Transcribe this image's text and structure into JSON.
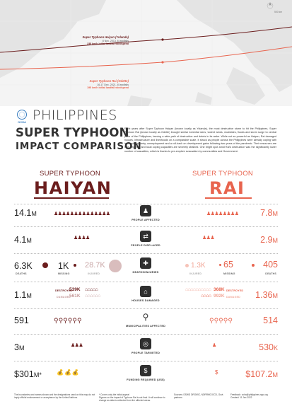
{
  "map": {
    "haiyan_label": {
      "name": "Super Typhoon Haiyan (Yolanda)",
      "dates": "8 Nov. 2013, 6 landfalls",
      "wind": "235 km/h initial landfall windspeed"
    },
    "rai_label": {
      "name": "Super Typhoon Rai (Odette)",
      "dates": "16-17 Dec. 2021, 8 landfalls",
      "wind": "195 km/h initial landfall windspeed"
    },
    "scale": "500 km",
    "colors": {
      "haiyan": "#6b1d1d",
      "rai": "#e8644e",
      "land": "#e3e3e3",
      "water": "#f4f4f4"
    }
  },
  "logo": {
    "text": "OCHA",
    "icon": "un-emblem-icon"
  },
  "title": {
    "line1": "PHILIPPINES",
    "line2": "SUPER TYPHOON",
    "line3": "IMPACT COMPARISON"
  },
  "intro": "Eight years after Super Typhoon Haiyan (known locally as Yolanda), the most destructive storm to hit the Philippines, Super Typhoon Rai (known locally as Odette) brought similar torrential rains, violent winds, mudslides, floods and storm surge to central parts of the Philippines, leaving a wide path of destruction and debris in its wake. While not as powerful as Haiyan, Rai damaged houses, infrastructure and livelihoods on a comparable scale. It struck as people across the Philippines were already coping with increasing poverty, unemployment and a roll-back on development gains following two years of the pandemic. Their resources are now depleted and local coping capacities are severely strained. One bright spot amid Rai's destruction was the significantly lower number of casualties, which is thanks to pre-emptive evacuation by communities and Government.",
  "storms": {
    "haiyan": {
      "sub": "SUPER TYPHOON",
      "name": "HAIYAN"
    },
    "rai": {
      "sub": "SUPER TYPHOON",
      "name": "RAI"
    }
  },
  "rows": {
    "affected": {
      "label": "PEOPLE AFFECTED",
      "haiyan": "14.1",
      "haiyan_unit": "M",
      "rai": "7.8",
      "rai_unit": "M",
      "icon": "people-group-icon"
    },
    "displaced": {
      "label": "PEOPLE DISPLACED",
      "haiyan": "4.1",
      "haiyan_unit": "M",
      "rai": "2.9",
      "rai_unit": "M",
      "icon": "displaced-people-icon"
    },
    "deaths": {
      "label": "DEATHS/INJURIES",
      "haiyan_deaths": "6.3K",
      "haiyan_missing": "1K",
      "haiyan_injured": "28.7K",
      "rai_injured": "1.3K",
      "rai_missing": "65",
      "rai_deaths": "405",
      "cap_deaths": "DEATHS",
      "cap_missing": "MISSING",
      "cap_injured": "INJURED",
      "icon": "injured-person-icon"
    },
    "houses": {
      "label": "HOUSES DAMAGED",
      "haiyan": "1.1",
      "haiyan_unit": "M",
      "rai": "1.36",
      "rai_unit": "M",
      "haiyan_destroyed": "539K",
      "haiyan_damaged": "561K",
      "rai_destroyed": "368K",
      "rai_damaged": "992K",
      "cap_destroyed": "DESTROYED",
      "cap_damaged": "DAMAGED",
      "icon": "house-icon"
    },
    "municipalities": {
      "label": "MUNICIPALITIES AFFECTED",
      "haiyan": "591",
      "rai": "514",
      "icon": "map-pin-icon"
    },
    "targeted": {
      "label": "PEOPLE TARGETED",
      "haiyan": "3",
      "haiyan_unit": "M",
      "rai": "530",
      "rai_unit": "K",
      "icon": "target-people-icon"
    },
    "funding": {
      "label": "FUNDING REQUIRED (US$)",
      "haiyan_prefix": "$",
      "haiyan": "301",
      "haiyan_unit": "M",
      "haiyan_note": "*",
      "rai_prefix": "$",
      "rai": "107.2",
      "rai_unit": "M",
      "icon": "money-bag-icon"
    }
  },
  "footer": {
    "disclaimer": "The boundaries and names shown and the designations used on this map do not imply official endorsement or acceptance by the United Nations.",
    "note": "* Covers only the initial appeal",
    "figures_note": "Figures on the impact of Typhoon Rai is not final. It will continue to change as data is collected from the affected areas.",
    "sources": "Sources: DSWD DROMIC, NDRRMC/OCD, Govt. partners",
    "feedback": "Feedback: ocha@philippines.ngo.org",
    "created": "Created: 11 Jan 2022"
  }
}
